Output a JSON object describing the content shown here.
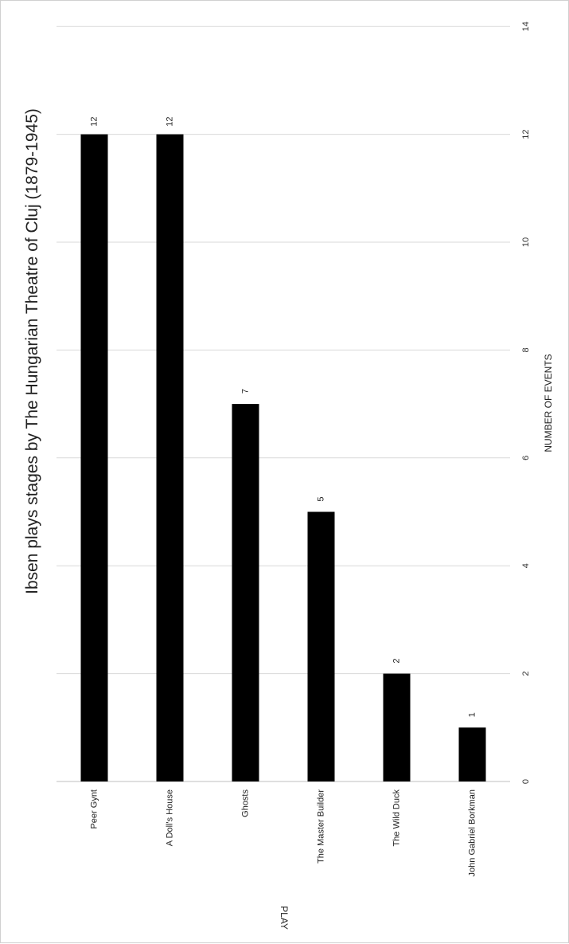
{
  "chart_data": {
    "type": "bar",
    "orientation": "horizontal",
    "title": "Ibsen plays stages by The Hungarian Theatre of Cluj (1879-1945)",
    "xlabel": "NUMBER OF EVENTS",
    "ylabel": "PLAY",
    "categories": [
      "Peer Gynt",
      "A Doll's House",
      "Ghosts",
      "The Master Builder",
      "The Wild Duck",
      "John Gabriel Borkman"
    ],
    "values": [
      12,
      12,
      7,
      5,
      2,
      1
    ],
    "xlim": [
      0,
      14
    ],
    "xticks": [
      0,
      2,
      4,
      6,
      8,
      10,
      12,
      14
    ],
    "grid": true,
    "data_labels": true,
    "bar_color": "#000000",
    "grid_color": "#d9d9d9"
  }
}
